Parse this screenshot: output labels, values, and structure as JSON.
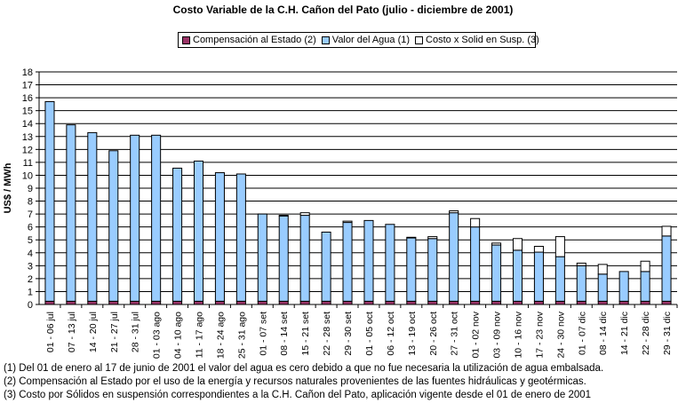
{
  "chart_data": {
    "type": "bar",
    "stacked": true,
    "title": "Costo Variable de la C.H. Cañon del Pato (julio - diciembre de 2001)",
    "ylabel": "US$ / MWh",
    "xlabel": "",
    "ylim": [
      0,
      18
    ],
    "yticks": [
      0,
      1,
      2,
      3,
      4,
      5,
      6,
      7,
      8,
      9,
      10,
      11,
      12,
      13,
      14,
      15,
      16,
      17,
      18
    ],
    "grid": true,
    "legend_position": "top",
    "categories": [
      "01 - 06 jul",
      "07 - 13 jul",
      "14 - 20 jul",
      "21 - 27 jul",
      "28 - 31 jul",
      "01 - 03 ago",
      "04 - 10 ago",
      "11 - 17 ago",
      "18 - 24 ago",
      "25 - 31 ago",
      "01 - 07 set",
      "08 - 14 set",
      "15 - 21 set",
      "22 - 28 set",
      "29 - 30 set",
      "01 - 05 oct",
      "06 - 12 oct",
      "13 - 19 oct",
      "20 - 26 oct",
      "27 - 31 oct",
      "01 - 02 nov",
      "03 - 09 nov",
      "10 - 16 nov",
      "17 - 23 nov",
      "24 - 30 nov",
      "01 - 07 dic",
      "08 - 14 dic",
      "14 - 21 dic",
      "22 - 28 dic",
      "29 - 31 dic"
    ],
    "series": [
      {
        "name": "Compensación al Estado (2)",
        "color": "#993366",
        "values": [
          0.25,
          0.25,
          0.25,
          0.25,
          0.25,
          0.25,
          0.25,
          0.25,
          0.25,
          0.25,
          0.25,
          0.25,
          0.25,
          0.25,
          0.25,
          0.25,
          0.25,
          0.25,
          0.25,
          0.25,
          0.25,
          0.25,
          0.25,
          0.25,
          0.25,
          0.25,
          0.25,
          0.25,
          0.25,
          0.25
        ]
      },
      {
        "name": "Valor del Agua (1)",
        "color": "#99CCFF",
        "values": [
          15.45,
          13.65,
          13.05,
          11.65,
          12.85,
          12.85,
          10.3,
          10.85,
          9.95,
          9.85,
          6.75,
          6.6,
          6.65,
          5.35,
          6.1,
          6.25,
          5.95,
          4.9,
          4.85,
          6.85,
          5.75,
          4.35,
          3.95,
          3.8,
          3.45,
          2.75,
          2.1,
          2.3,
          2.3,
          5.05
        ]
      },
      {
        "name": "Costo x Solid en Susp. (3)",
        "color": "#FFFFFF",
        "values": [
          0,
          0,
          0,
          0,
          0,
          0,
          0,
          0,
          0,
          0,
          0,
          0.05,
          0.2,
          0,
          0.1,
          0,
          0,
          0.05,
          0.15,
          0.15,
          0.65,
          0.15,
          0.9,
          0.45,
          1.55,
          0.2,
          0.75,
          0,
          0.8,
          0.75
        ]
      }
    ]
  },
  "notes": [
    "(1) Del 01 de enero al 17 de junio de 2001 el valor del agua es cero debido a que no fue necesaria la utilización de agua embalsada.",
    "(2) Compensación al Estado por el uso de la energía y recursos naturales provenientes de las fuentes hidráulicas y geotérmicas.",
    "(3) Costo por Sólidos en suspensión correspondientes a la C.H. Cañon del Pato, aplicación vigente desde el 01 de enero de 2001"
  ]
}
